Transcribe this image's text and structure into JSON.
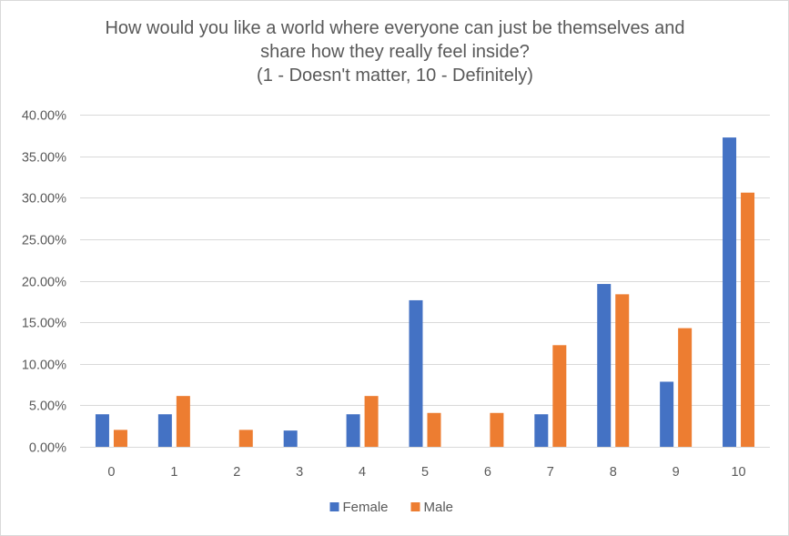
{
  "chart_data": {
    "type": "bar",
    "title_lines": [
      "How would you like a world where everyone can just be themselves and",
      "share how they really feel inside?",
      "(1 - Doesn't matter, 10 - Definitely)"
    ],
    "categories": [
      "0",
      "1",
      "2",
      "3",
      "4",
      "5",
      "6",
      "7",
      "8",
      "9",
      "10"
    ],
    "series": [
      {
        "name": "Female",
        "color": "#4472c4",
        "values": [
          3.92,
          3.92,
          0,
          1.96,
          3.92,
          17.65,
          0,
          3.92,
          19.61,
          7.84,
          37.25
        ]
      },
      {
        "name": "Male",
        "color": "#ed7d31",
        "values": [
          2.04,
          6.12,
          2.04,
          0,
          6.12,
          4.08,
          4.08,
          12.24,
          18.37,
          14.29,
          30.61
        ]
      }
    ],
    "ylim": [
      0,
      40
    ],
    "yticks": [
      "0.00%",
      "5.00%",
      "10.00%",
      "15.00%",
      "20.00%",
      "25.00%",
      "30.00%",
      "35.00%",
      "40.00%"
    ],
    "grid": true,
    "legend_position": "bottom"
  }
}
